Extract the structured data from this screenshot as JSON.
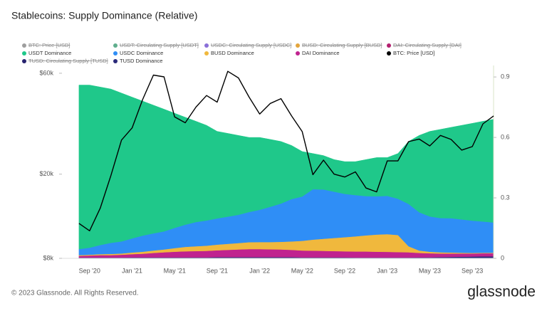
{
  "chart_data": {
    "type": "stacked_area_line",
    "title": "Stablecoins: Supply Dominance (Relative)",
    "footer": "© 2023 Glassnode. All Rights Reserved.",
    "brand": "glassnode",
    "categories": [
      null,
      "Sep '20",
      null,
      null,
      null,
      "Jan '21",
      null,
      null,
      null,
      "May '21",
      null,
      null,
      null,
      "Sep '21",
      null,
      null,
      null,
      "Jan '22",
      null,
      null,
      null,
      "May '22",
      null,
      null,
      null,
      "Sep '22",
      null,
      null,
      null,
      "Jan '23",
      null,
      null,
      null,
      "May '23",
      null,
      null,
      null,
      "Sep '23",
      null,
      null
    ],
    "ylog": true,
    "ylim": [
      8000,
      65300
    ],
    "yticks": [
      {
        "value": 8000,
        "label": "$8k"
      },
      {
        "value": 20000,
        "label": "$20k"
      },
      {
        "value": 60000,
        "label": "$60k"
      }
    ],
    "y2lim": [
      0,
      0.957
    ],
    "y2ticks": [
      0,
      0.3,
      0.6,
      0.9
    ],
    "inactive_series": [
      {
        "name": "BTC: Price [USD]",
        "color": "#9e9e9e"
      },
      {
        "name": "USDT: Circulating Supply [USDT]",
        "color": "#5fae8d"
      },
      {
        "name": "USDC: Circulating Supply [USDC]",
        "color": "#8a6fd8"
      },
      {
        "name": "BUSD: Circulating Supply [BUSD]",
        "color": "#e3a53c"
      },
      {
        "name": "DAI: Circulating Supply [DAI]",
        "color": "#b31f6f"
      },
      {
        "name": "TUSD: Circulating Supply [TUSD]",
        "color": "#27236f"
      }
    ],
    "series": [
      {
        "name": "USDT Dominance",
        "color": "#1fc88a",
        "axis": "y2",
        "values": [
          0.814,
          0.807,
          0.784,
          0.763,
          0.736,
          0.701,
          0.667,
          0.636,
          0.606,
          0.569,
          0.533,
          0.5,
          0.472,
          0.432,
          0.413,
          0.394,
          0.37,
          0.359,
          0.334,
          0.308,
          0.266,
          0.223,
          0.177,
          0.168,
          0.159,
          0.16,
          0.166,
          0.181,
          0.192,
          0.19,
          0.224,
          0.31,
          0.381,
          0.422,
          0.44,
          0.451,
          0.467,
          0.483,
          0.497,
          0.512
        ]
      },
      {
        "name": "USDC Dominance",
        "color": "#2f8ef6",
        "axis": "y2",
        "values": [
          0.03,
          0.035,
          0.045,
          0.055,
          0.06,
          0.07,
          0.08,
          0.085,
          0.09,
          0.1,
          0.11,
          0.12,
          0.125,
          0.13,
          0.135,
          0.14,
          0.15,
          0.16,
          0.175,
          0.19,
          0.21,
          0.22,
          0.25,
          0.245,
          0.23,
          0.215,
          0.205,
          0.195,
          0.19,
          0.19,
          0.18,
          0.21,
          0.19,
          0.175,
          0.17,
          0.17,
          0.165,
          0.16,
          0.155,
          0.15
        ]
      },
      {
        "name": "BUSD Dominance",
        "color": "#f0b83d",
        "axis": "y2",
        "values": [
          0.004,
          0.004,
          0.005,
          0.006,
          0.006,
          0.008,
          0.01,
          0.012,
          0.014,
          0.018,
          0.022,
          0.024,
          0.026,
          0.028,
          0.03,
          0.032,
          0.034,
          0.035,
          0.036,
          0.038,
          0.042,
          0.048,
          0.055,
          0.06,
          0.065,
          0.07,
          0.075,
          0.08,
          0.085,
          0.088,
          0.085,
          0.03,
          0.012,
          0.008,
          0.006,
          0.005,
          0.004,
          0.003,
          0.003,
          0.003
        ]
      },
      {
        "name": "DAI Dominance",
        "color": "#c0238f",
        "axis": "y2",
        "values": [
          0.008,
          0.01,
          0.012,
          0.012,
          0.014,
          0.016,
          0.018,
          0.022,
          0.025,
          0.028,
          0.03,
          0.031,
          0.032,
          0.034,
          0.036,
          0.038,
          0.04,
          0.04,
          0.039,
          0.038,
          0.036,
          0.034,
          0.033,
          0.032,
          0.031,
          0.03,
          0.03,
          0.03,
          0.029,
          0.028,
          0.027,
          0.026,
          0.022,
          0.02,
          0.018,
          0.017,
          0.016,
          0.015,
          0.015,
          0.015
        ]
      },
      {
        "name": "BTC: Price [USD]",
        "color": "#000000",
        "axis": "y",
        "values": [
          11700,
          10800,
          13800,
          19700,
          29000,
          33100,
          45200,
          58800,
          57700,
          37300,
          35000,
          41500,
          47100,
          43800,
          61300,
          57000,
          46300,
          38500,
          43200,
          45500,
          37700,
          31800,
          19900,
          23300,
          20000,
          19400,
          20500,
          17200,
          16500,
          23100,
          23100,
          28500,
          29300,
          27200,
          30500,
          29200,
          26000,
          27000,
          34600,
          37700
        ]
      },
      {
        "name": "TUSD Dominance",
        "color": "#2b2a7a",
        "axis": "y2",
        "values": [
          0.004,
          0.004,
          0.004,
          0.004,
          0.004,
          0.005,
          0.005,
          0.005,
          0.005,
          0.005,
          0.005,
          0.005,
          0.005,
          0.006,
          0.006,
          0.006,
          0.006,
          0.006,
          0.006,
          0.006,
          0.006,
          0.005,
          0.005,
          0.005,
          0.005,
          0.005,
          0.004,
          0.004,
          0.004,
          0.004,
          0.004,
          0.004,
          0.005,
          0.005,
          0.006,
          0.007,
          0.008,
          0.009,
          0.01,
          0.01
        ]
      }
    ]
  }
}
